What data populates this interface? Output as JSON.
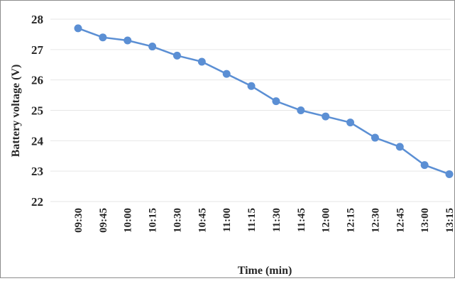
{
  "chart_data": {
    "type": "line",
    "title": "",
    "xlabel": "Time (min)",
    "ylabel": "Battery voltage (V)",
    "ylim": [
      22,
      28
    ],
    "yticks": [
      22,
      23,
      24,
      25,
      26,
      27,
      28
    ],
    "grid": true,
    "legend": "none",
    "line_color": "#5b8fd4",
    "categories": [
      "09:30",
      "09:45",
      "10:00",
      "10:15",
      "10:30",
      "10:45",
      "11:00",
      "11:15",
      "11:30",
      "11:45",
      "12:00",
      "12:15",
      "12:30",
      "12:45",
      "13:00",
      "13:15"
    ],
    "series": [
      {
        "values": [
          27.7,
          27.4,
          27.3,
          27.1,
          26.8,
          26.6,
          26.2,
          25.8,
          25.3,
          25.0,
          24.8,
          24.6,
          24.1,
          23.8,
          23.2,
          22.9
        ]
      }
    ]
  }
}
